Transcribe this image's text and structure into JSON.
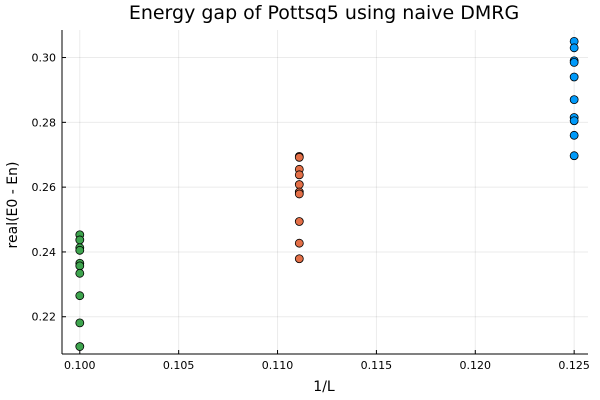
{
  "chart_data": {
    "type": "scatter",
    "title": "Energy gap of Pottsq5 using naive DMRG",
    "xlabel": "1/L",
    "ylabel": "real(E0 - En)",
    "xlim": [
      0.0991,
      0.1257
    ],
    "ylim": [
      0.2085,
      0.3085
    ],
    "xticks": [
      0.1,
      0.105,
      0.11,
      0.115,
      0.12,
      0.125
    ],
    "xtick_labels": [
      "0.100",
      "0.105",
      "0.110",
      "0.115",
      "0.120",
      "0.125"
    ],
    "yticks": [
      0.22,
      0.24,
      0.26,
      0.28,
      0.3
    ],
    "ytick_labels": [
      "0.22",
      "0.24",
      "0.26",
      "0.28",
      "0.30"
    ],
    "grid": true,
    "legend": "none",
    "series": [
      {
        "color": "#009AFA",
        "points": [
          {
            "x": 0.125,
            "y": 0.305
          },
          {
            "x": 0.125,
            "y": 0.303
          },
          {
            "x": 0.125,
            "y": 0.299
          },
          {
            "x": 0.125,
            "y": 0.2985
          },
          {
            "x": 0.125,
            "y": 0.294
          },
          {
            "x": 0.125,
            "y": 0.287
          },
          {
            "x": 0.125,
            "y": 0.2815
          },
          {
            "x": 0.125,
            "y": 0.2805
          },
          {
            "x": 0.125,
            "y": 0.276
          },
          {
            "x": 0.125,
            "y": 0.2697
          }
        ]
      },
      {
        "color": "#E36F47",
        "points": [
          {
            "x": 0.1111,
            "y": 0.2695
          },
          {
            "x": 0.1111,
            "y": 0.2692
          },
          {
            "x": 0.1111,
            "y": 0.2655
          },
          {
            "x": 0.1111,
            "y": 0.2638
          },
          {
            "x": 0.1111,
            "y": 0.2608
          },
          {
            "x": 0.1111,
            "y": 0.2585
          },
          {
            "x": 0.1111,
            "y": 0.2579
          },
          {
            "x": 0.1111,
            "y": 0.2494
          },
          {
            "x": 0.1111,
            "y": 0.2427
          },
          {
            "x": 0.1111,
            "y": 0.2379
          }
        ]
      },
      {
        "color": "#3EA44E",
        "points": [
          {
            "x": 0.1,
            "y": 0.2453
          },
          {
            "x": 0.1,
            "y": 0.2437
          },
          {
            "x": 0.1,
            "y": 0.2413
          },
          {
            "x": 0.1,
            "y": 0.2405
          },
          {
            "x": 0.1,
            "y": 0.2365
          },
          {
            "x": 0.1,
            "y": 0.2357
          },
          {
            "x": 0.1,
            "y": 0.2334
          },
          {
            "x": 0.1,
            "y": 0.2265
          },
          {
            "x": 0.1,
            "y": 0.2181
          },
          {
            "x": 0.1,
            "y": 0.2108
          }
        ]
      }
    ]
  }
}
